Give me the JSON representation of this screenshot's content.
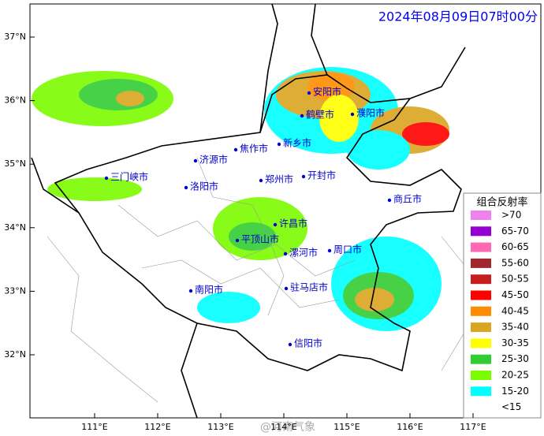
{
  "title": "2024年08月09日07时00分",
  "lat_labels": [
    "37°N",
    "36°N",
    "35°N",
    "34°N",
    "33°N",
    "32°N"
  ],
  "lon_labels": [
    "111°E",
    "112°E",
    "113°E",
    "114°E",
    "115°E",
    "116°E",
    "117°E"
  ],
  "cities": [
    "安阳市",
    "鹤壁市",
    "濮阳市",
    "新乡市",
    "焦作市",
    "济源市",
    "开封市",
    "郑州市",
    "三门峡市",
    "洛阳市",
    "商丘市",
    "许昌市",
    "平顶山市",
    "漯河市",
    "周口市",
    "南阳市",
    "驻马店市",
    "信阳市"
  ],
  "legend": {
    "title": "组合反射率",
    "items": [
      {
        "label": ">70",
        "color": "#ee82ee"
      },
      {
        "label": "65-70",
        "color": "#9400d3"
      },
      {
        "label": "60-65",
        "color": "#ff69b4"
      },
      {
        "label": "55-60",
        "color": "#a0282d"
      },
      {
        "label": "50-55",
        "color": "#c41e1e"
      },
      {
        "label": "45-50",
        "color": "#ff0000"
      },
      {
        "label": "40-45",
        "color": "#ff8c00"
      },
      {
        "label": "35-40",
        "color": "#daa520"
      },
      {
        "label": "30-35",
        "color": "#ffff00"
      },
      {
        "label": "25-30",
        "color": "#32cd32"
      },
      {
        "label": "20-25",
        "color": "#7cfc00"
      },
      {
        "label": "15-20",
        "color": "#00ffff"
      },
      {
        "label": "<15",
        "color": "#ffffff"
      }
    ]
  },
  "watermark": "@河南气象"
}
